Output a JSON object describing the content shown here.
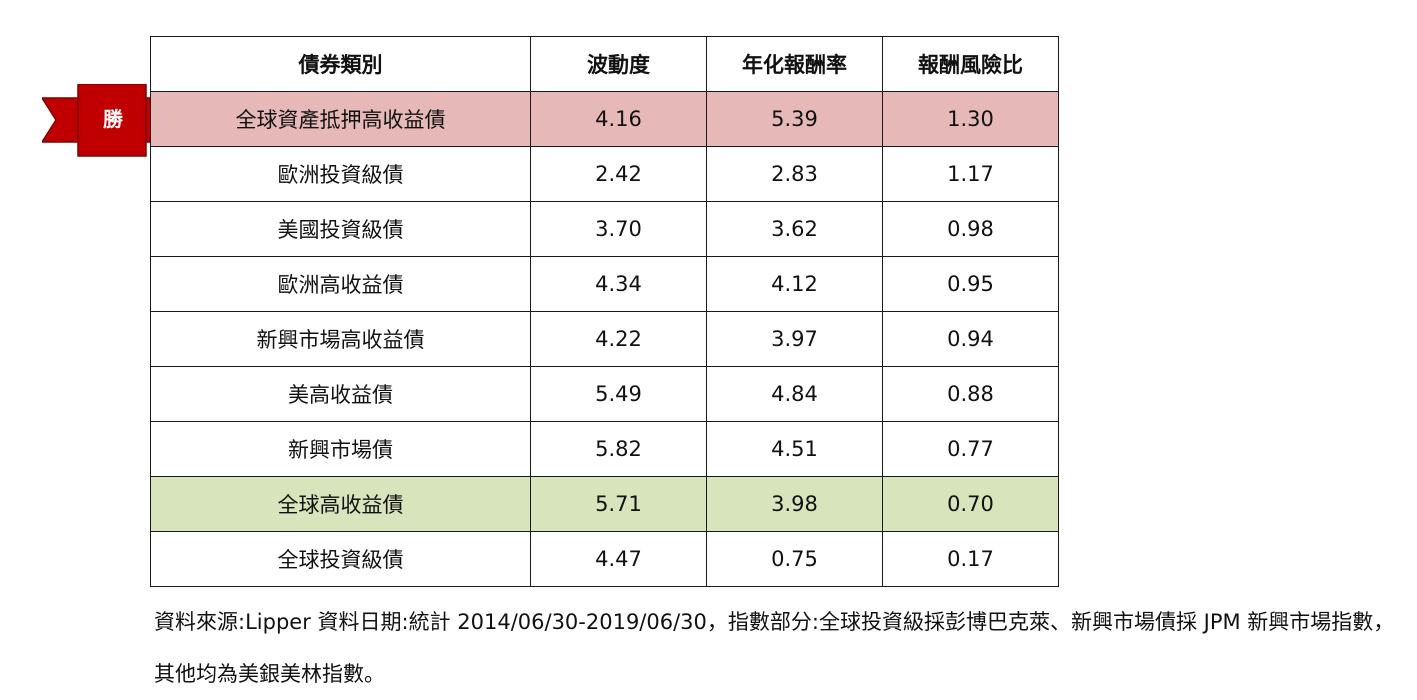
{
  "ribbon": {
    "label": "勝",
    "color": "#c00000"
  },
  "table": {
    "headers": [
      "債券類別",
      "波動度",
      "年化報酬率",
      "報酬風險比"
    ],
    "rows": [
      {
        "category": "全球資產抵押高收益債",
        "volatility": "4.16",
        "annual_return": "5.39",
        "return_risk_ratio": "1.30",
        "highlight": "#e6b8b7"
      },
      {
        "category": "歐洲投資級債",
        "volatility": "2.42",
        "annual_return": "2.83",
        "return_risk_ratio": "1.17"
      },
      {
        "category": "美國投資級債",
        "volatility": "3.70",
        "annual_return": "3.62",
        "return_risk_ratio": "0.98"
      },
      {
        "category": "歐洲高收益債",
        "volatility": "4.34",
        "annual_return": "4.12",
        "return_risk_ratio": "0.95"
      },
      {
        "category": "新興市場高收益債",
        "volatility": "4.22",
        "annual_return": "3.97",
        "return_risk_ratio": "0.94"
      },
      {
        "category": "美高收益債",
        "volatility": "5.49",
        "annual_return": "4.84",
        "return_risk_ratio": "0.88"
      },
      {
        "category": "新興市場債",
        "volatility": "5.82",
        "annual_return": "4.51",
        "return_risk_ratio": "0.77"
      },
      {
        "category": "全球高收益債",
        "volatility": "5.71",
        "annual_return": "3.98",
        "return_risk_ratio": "0.70",
        "highlight": "#d8e4bc"
      },
      {
        "category": "全球投資級債",
        "volatility": "4.47",
        "annual_return": "0.75",
        "return_risk_ratio": "0.17"
      }
    ]
  },
  "footnote": "資料來源:Lipper  資料日期:統計 2014/06/30-2019/06/30，指數部分:全球投資級採彭博巴克萊、新興市場債採 JPM 新興市場指數，其他均為美銀美林指數。"
}
